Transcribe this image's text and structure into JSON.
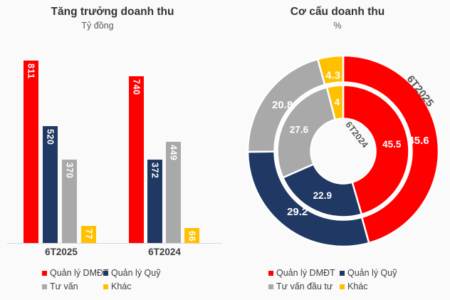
{
  "background": "#FAFAFA",
  "palette": {
    "red": "#FF0000",
    "navy": "#1F3864",
    "gray": "#A9A9A9",
    "yellow": "#FFC000",
    "axis": "#D9D9D9",
    "title": "#333333",
    "subtitle": "#595959",
    "ring_label": "#595959",
    "legend_text": "#3F3F3F",
    "bar_label": "#FFFFFF"
  },
  "chart_data": [
    {
      "type": "bar",
      "title": "Tăng trưởng doanh thu",
      "ylabel": "Tỷ đồng",
      "categories": [
        "6T2025",
        "6T2024"
      ],
      "series": [
        {
          "name": "Quản lý DMĐT",
          "color_key": "red",
          "values": [
            811,
            740
          ]
        },
        {
          "name": "Quản lý Quỹ",
          "color_key": "navy",
          "values": [
            520,
            372
          ]
        },
        {
          "name": "Tư vấn",
          "color_key": "gray",
          "values": [
            370,
            449
          ]
        },
        {
          "name": "Khác",
          "color_key": "yellow",
          "values": [
            77,
            66
          ]
        }
      ],
      "ylim": [
        0,
        860
      ],
      "grid": false,
      "legend_position": "bottom",
      "legend": [
        "Quản lý DMĐT",
        "Quản lý Quỹ",
        "Tư vấn",
        "Khác"
      ]
    },
    {
      "type": "pie",
      "subtype": "double-ring-donut",
      "title": "Cơ cấu doanh thu",
      "unit": "%",
      "segments": [
        "Quản lý DMĐT",
        "Quản lý Quỹ",
        "Tư vấn đầu tư",
        "Khác"
      ],
      "segment_color_keys": [
        "red",
        "navy",
        "gray",
        "yellow"
      ],
      "rings": [
        {
          "name": "6T2025",
          "position": "outer",
          "values": [
            45.6,
            29.2,
            20.8,
            4.3
          ],
          "labels": [
            "45.6",
            "29.2",
            "20.8",
            "4.3"
          ]
        },
        {
          "name": "6T2024",
          "position": "inner",
          "values": [
            45.5,
            22.9,
            27.6,
            4.0
          ],
          "labels": [
            "45.5",
            "22.9",
            "27.6",
            "4"
          ]
        }
      ],
      "legend_position": "bottom",
      "legend": [
        "Quản lý DMĐT",
        "Quản lý Quỹ",
        "Tư vấn đầu tư",
        "Khác"
      ]
    }
  ]
}
